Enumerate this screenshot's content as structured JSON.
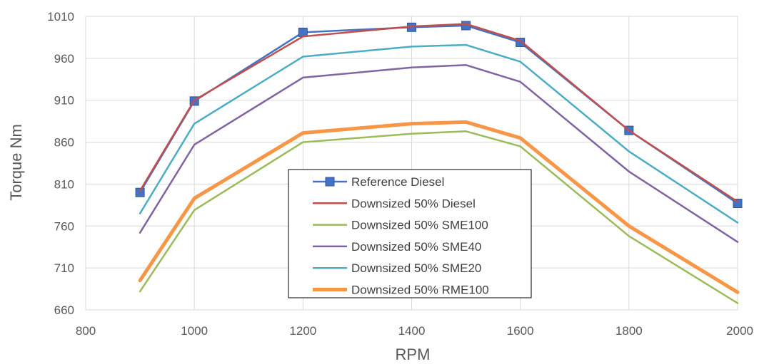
{
  "chart_data": {
    "type": "line",
    "title": "",
    "xlabel": "RPM",
    "ylabel": "Torque Nm",
    "xlim": [
      800,
      2000
    ],
    "ylim": [
      660,
      1010
    ],
    "x_ticks": [
      800,
      1000,
      1200,
      1400,
      1600,
      1800,
      2000
    ],
    "y_ticks": [
      660,
      710,
      760,
      810,
      860,
      910,
      960,
      1010
    ],
    "grid": "vertical and horizontal major gridlines",
    "legend_position": "center",
    "series": [
      {
        "name": "Reference Diesel",
        "color": "#4472C4",
        "marker": "square",
        "x": [
          900,
          1000,
          1200,
          1400,
          1500,
          1600,
          1800,
          2000
        ],
        "y": [
          800,
          909,
          991,
          997,
          999,
          979,
          874,
          787
        ]
      },
      {
        "name": "Downsized 50% Diesel",
        "color": "#C0504D",
        "marker": "none",
        "x": [
          900,
          1000,
          1200,
          1400,
          1500,
          1600,
          1800,
          2000
        ],
        "y": [
          802,
          910,
          986,
          998,
          1001,
          981,
          874,
          789
        ]
      },
      {
        "name": "Downsized 50% SME100",
        "color": "#9BBB59",
        "marker": "none",
        "x": [
          900,
          1000,
          1200,
          1400,
          1500,
          1600,
          1800,
          2000
        ],
        "y": [
          682,
          779,
          860,
          870,
          873,
          855,
          748,
          668
        ]
      },
      {
        "name": "Downsized 50% SME40",
        "color": "#8064A2",
        "marker": "none",
        "x": [
          900,
          1000,
          1200,
          1400,
          1500,
          1600,
          1800,
          2000
        ],
        "y": [
          752,
          857,
          937,
          949,
          952,
          932,
          825,
          741
        ]
      },
      {
        "name": "Downsized 50% SME20",
        "color": "#4BACC6",
        "marker": "none",
        "x": [
          900,
          1000,
          1200,
          1400,
          1500,
          1600,
          1800,
          2000
        ],
        "y": [
          775,
          882,
          962,
          974,
          976,
          956,
          849,
          764
        ]
      },
      {
        "name": "Downsized 50% RME100",
        "color": "#F79646",
        "marker": "none",
        "thick": true,
        "x": [
          900,
          1000,
          1200,
          1400,
          1500,
          1600,
          1800,
          2000
        ],
        "y": [
          695,
          793,
          871,
          882,
          884,
          865,
          760,
          681
        ]
      }
    ]
  }
}
